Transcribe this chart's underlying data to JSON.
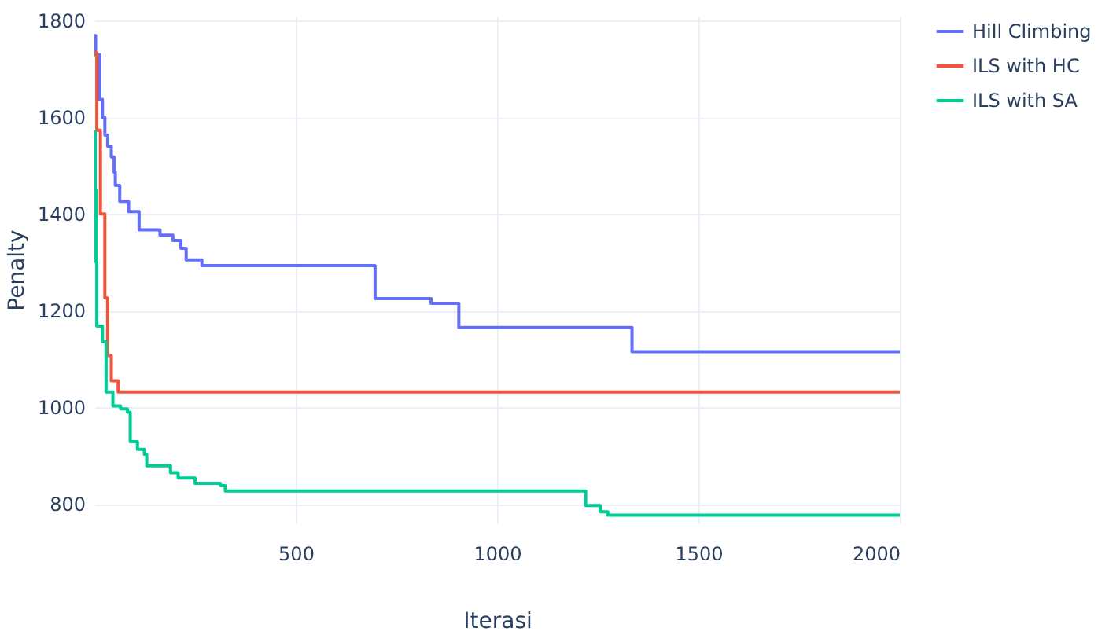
{
  "chart_data": {
    "type": "step",
    "xlabel": "Iterasi",
    "ylabel": "Penalty",
    "xlim": [
      0,
      2000
    ],
    "ylim": [
      760,
      1810
    ],
    "xticks": [
      500,
      1000,
      1500,
      2000
    ],
    "yticks": [
      800,
      1000,
      1200,
      1400,
      1600,
      1800
    ],
    "grid": true,
    "legend": "top right",
    "line_style": "solid",
    "marker": "none",
    "series": [
      {
        "name": "Hill Climbing",
        "color": "#636efa",
        "x": [
          0,
          3,
          13,
          20,
          26,
          33,
          42,
          49,
          52,
          63,
          85,
          111,
          163,
          195,
          215,
          228,
          267,
          697,
          836,
          905,
          1335,
          2000
        ],
        "values": [
          1769,
          1729,
          1637,
          1600,
          1563,
          1540,
          1518,
          1486,
          1459,
          1426,
          1405,
          1367,
          1356,
          1345,
          1329,
          1305,
          1293,
          1225,
          1215,
          1165,
          1115,
          1115
        ]
      },
      {
        "name": "ILS with HC",
        "color": "#ef553b",
        "x": [
          0,
          6,
          15,
          26,
          33,
          42,
          59,
          2000
        ],
        "values": [
          1733,
          1573,
          1400,
          1226,
          1107,
          1055,
          1032,
          1032
        ]
      },
      {
        "name": "ILS with SA",
        "color": "#00cc96",
        "x": [
          0,
          2,
          4,
          6,
          20,
          29,
          46,
          65,
          82,
          89,
          107,
          124,
          130,
          189,
          208,
          250,
          313,
          325,
          1220,
          1256,
          1275,
          2000
        ],
        "values": [
          1570,
          1450,
          1300,
          1168,
          1136,
          1032,
          1003,
          997,
          990,
          929,
          913,
          903,
          879,
          865,
          854,
          843,
          838,
          827,
          797,
          784,
          777,
          777
        ]
      }
    ]
  }
}
